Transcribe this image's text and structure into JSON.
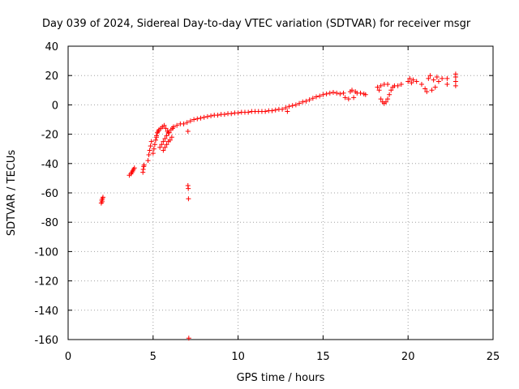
{
  "colors": {
    "series": "#ff0000",
    "axis": "#000000",
    "grid": "#a0a0a0",
    "background": "#ffffff"
  },
  "chart_data": {
    "type": "scatter",
    "title": "Day 039 of 2024, Sidereal Day-to-day VTEC variation (SDTVAR) for receiver msgr",
    "xlabel": "GPS time / hours",
    "ylabel": "SDTVAR / TECUs",
    "xlim": [
      0,
      25
    ],
    "ylim": [
      -160,
      40
    ],
    "xticks": [
      0,
      5,
      10,
      15,
      20,
      25
    ],
    "xtick_labels": [
      "0",
      "5",
      "10",
      "15",
      "20",
      "25"
    ],
    "yticks": [
      -160,
      -140,
      -120,
      -100,
      -80,
      -60,
      -40,
      -20,
      0,
      20,
      40
    ],
    "ytick_labels": [
      "-160",
      "-140",
      "-120",
      "-100",
      "-80",
      "-60",
      "-40",
      "-20",
      "0",
      "20",
      "40"
    ],
    "grid": true,
    "marker": "+",
    "series": [
      {
        "name": "SDTVAR",
        "points": [
          [
            1.95,
            -67
          ],
          [
            1.98,
            -65
          ],
          [
            2.0,
            -66
          ],
          [
            2.02,
            -64
          ],
          [
            2.05,
            -63
          ],
          [
            3.6,
            -48
          ],
          [
            3.7,
            -47
          ],
          [
            3.75,
            -46
          ],
          [
            3.8,
            -45
          ],
          [
            3.85,
            -44
          ],
          [
            3.9,
            -43
          ],
          [
            4.4,
            -46
          ],
          [
            4.42,
            -44
          ],
          [
            4.45,
            -42
          ],
          [
            4.47,
            -41
          ],
          [
            4.7,
            -38
          ],
          [
            4.75,
            -34
          ],
          [
            4.8,
            -31
          ],
          [
            4.85,
            -28
          ],
          [
            4.9,
            -25
          ],
          [
            5.0,
            -33
          ],
          [
            5.05,
            -30
          ],
          [
            5.1,
            -27
          ],
          [
            5.15,
            -24
          ],
          [
            5.2,
            -22
          ],
          [
            5.2,
            -21
          ],
          [
            5.25,
            -19
          ],
          [
            5.3,
            -18
          ],
          [
            5.35,
            -17
          ],
          [
            5.45,
            -16
          ],
          [
            5.55,
            -15
          ],
          [
            5.4,
            -29
          ],
          [
            5.5,
            -27
          ],
          [
            5.6,
            -25
          ],
          [
            5.7,
            -23
          ],
          [
            5.8,
            -21
          ],
          [
            5.9,
            -19
          ],
          [
            5.6,
            -31
          ],
          [
            5.7,
            -29
          ],
          [
            5.8,
            -27
          ],
          [
            5.9,
            -25
          ],
          [
            6.0,
            -24
          ],
          [
            6.1,
            -22
          ],
          [
            5.65,
            -14
          ],
          [
            5.75,
            -16
          ],
          [
            5.85,
            -18
          ],
          [
            5.95,
            -19
          ],
          [
            6.05,
            -17
          ],
          [
            6.15,
            -16
          ],
          [
            6.2,
            -15
          ],
          [
            6.4,
            -14
          ],
          [
            6.6,
            -13
          ],
          [
            6.8,
            -13
          ],
          [
            7.0,
            -12
          ],
          [
            7.05,
            -55
          ],
          [
            7.07,
            -57
          ],
          [
            7.08,
            -64
          ],
          [
            7.05,
            -18
          ],
          [
            7.1,
            -159
          ],
          [
            7.2,
            -11
          ],
          [
            7.4,
            -10
          ],
          [
            7.6,
            -9.5
          ],
          [
            7.8,
            -9
          ],
          [
            8.0,
            -8.5
          ],
          [
            8.2,
            -8
          ],
          [
            8.4,
            -7.5
          ],
          [
            8.6,
            -7
          ],
          [
            8.8,
            -7
          ],
          [
            9.0,
            -6.5
          ],
          [
            9.2,
            -6.5
          ],
          [
            9.4,
            -6
          ],
          [
            9.6,
            -6
          ],
          [
            9.8,
            -5.5
          ],
          [
            10.0,
            -5.5
          ],
          [
            10.2,
            -5
          ],
          [
            10.4,
            -5
          ],
          [
            10.6,
            -5
          ],
          [
            10.8,
            -4.5
          ],
          [
            11.0,
            -4.5
          ],
          [
            11.2,
            -4.5
          ],
          [
            11.4,
            -4.5
          ],
          [
            11.6,
            -4.5
          ],
          [
            11.8,
            -4
          ],
          [
            12.0,
            -4
          ],
          [
            12.2,
            -3.5
          ],
          [
            12.4,
            -3
          ],
          [
            12.6,
            -3
          ],
          [
            12.8,
            -2
          ],
          [
            12.9,
            -4.5
          ],
          [
            13.0,
            -1
          ],
          [
            13.2,
            -0.5
          ],
          [
            13.4,
            0
          ],
          [
            13.6,
            1
          ],
          [
            13.8,
            2
          ],
          [
            14.0,
            2.5
          ],
          [
            14.2,
            3.5
          ],
          [
            14.4,
            4.5
          ],
          [
            14.6,
            5.5
          ],
          [
            14.8,
            6
          ],
          [
            15.0,
            7
          ],
          [
            15.2,
            7.5
          ],
          [
            15.4,
            8
          ],
          [
            15.6,
            8.5
          ],
          [
            15.8,
            8
          ],
          [
            16.0,
            7.5
          ],
          [
            16.2,
            8
          ],
          [
            16.3,
            5
          ],
          [
            16.5,
            4
          ],
          [
            16.6,
            9
          ],
          [
            16.7,
            10
          ],
          [
            16.8,
            5
          ],
          [
            16.9,
            9
          ],
          [
            17.0,
            8
          ],
          [
            17.2,
            8
          ],
          [
            17.4,
            7.5
          ],
          [
            17.5,
            7
          ],
          [
            18.2,
            12
          ],
          [
            18.3,
            10
          ],
          [
            18.4,
            4
          ],
          [
            18.5,
            2
          ],
          [
            18.6,
            1
          ],
          [
            18.7,
            2
          ],
          [
            18.8,
            4
          ],
          [
            18.9,
            7
          ],
          [
            19.0,
            10
          ],
          [
            19.1,
            12
          ],
          [
            19.2,
            13
          ],
          [
            19.4,
            13
          ],
          [
            19.6,
            14
          ],
          [
            18.4,
            13
          ],
          [
            18.6,
            14
          ],
          [
            18.8,
            14
          ],
          [
            20.0,
            16
          ],
          [
            20.1,
            18
          ],
          [
            20.2,
            15
          ],
          [
            20.3,
            17
          ],
          [
            20.5,
            16
          ],
          [
            20.8,
            14
          ],
          [
            21.0,
            11
          ],
          [
            21.1,
            9
          ],
          [
            21.2,
            18
          ],
          [
            21.3,
            20
          ],
          [
            21.4,
            10
          ],
          [
            21.5,
            17
          ],
          [
            21.6,
            12
          ],
          [
            21.7,
            19
          ],
          [
            21.8,
            16
          ],
          [
            22.0,
            18
          ],
          [
            22.3,
            14
          ],
          [
            22.3,
            18
          ],
          [
            22.8,
            13
          ],
          [
            22.8,
            16
          ],
          [
            22.8,
            19
          ],
          [
            22.8,
            21
          ]
        ]
      }
    ]
  }
}
